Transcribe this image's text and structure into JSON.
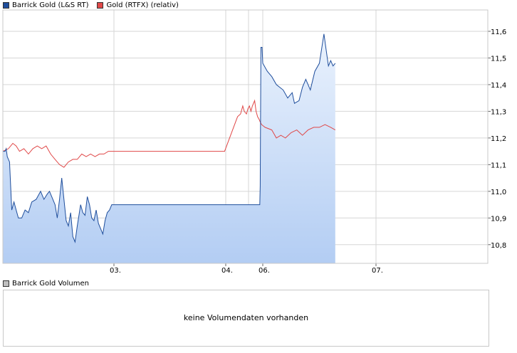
{
  "legend": {
    "series1": "Barrick Gold (L&S RT)",
    "series2": "Gold (RTFX) (relativ)",
    "volume": "Barrick Gold Volumen"
  },
  "volume_message": "keine Volumendaten vorhanden",
  "colors": {
    "barrick_line": "#1f4e9c",
    "barrick_fill_top": "#eaf2fd",
    "barrick_fill_bottom": "#b3cdf3",
    "gold_line": "#e04848",
    "grid": "#d6d6d6",
    "frame": "#c8c8c8",
    "volume_swatch": "#bfbfbf"
  },
  "chart_data": {
    "type": "line",
    "x_ticks": [
      "03.",
      "04.",
      "06.",
      "07."
    ],
    "y_ticks": [
      "10,8",
      "10,9",
      "11,0",
      "11,1",
      "11,2",
      "11,3",
      "11,4",
      "11,5",
      "11,6"
    ],
    "ylim": [
      10.73,
      11.68
    ],
    "grid": true,
    "legend_position": "top-left",
    "series": [
      {
        "name": "Barrick Gold (L&S RT)",
        "area_fill": true,
        "points": [
          [
            0.0,
            11.15
          ],
          [
            0.02,
            11.15
          ],
          [
            0.03,
            11.16
          ],
          [
            0.04,
            11.13
          ],
          [
            0.06,
            11.11
          ],
          [
            0.08,
            10.93
          ],
          [
            0.1,
            10.96
          ],
          [
            0.12,
            10.93
          ],
          [
            0.14,
            10.9
          ],
          [
            0.17,
            10.9
          ],
          [
            0.2,
            10.93
          ],
          [
            0.23,
            10.92
          ],
          [
            0.26,
            10.96
          ],
          [
            0.3,
            10.97
          ],
          [
            0.34,
            11.0
          ],
          [
            0.37,
            10.97
          ],
          [
            0.4,
            10.99
          ],
          [
            0.42,
            11.0
          ],
          [
            0.45,
            10.97
          ],
          [
            0.47,
            10.95
          ],
          [
            0.49,
            10.9
          ],
          [
            0.51,
            10.97
          ],
          [
            0.53,
            11.05
          ],
          [
            0.55,
            10.97
          ],
          [
            0.57,
            10.89
          ],
          [
            0.59,
            10.87
          ],
          [
            0.61,
            10.92
          ],
          [
            0.63,
            10.83
          ],
          [
            0.65,
            10.81
          ],
          [
            0.67,
            10.87
          ],
          [
            0.7,
            10.95
          ],
          [
            0.72,
            10.92
          ],
          [
            0.74,
            10.91
          ],
          [
            0.76,
            10.98
          ],
          [
            0.78,
            10.95
          ],
          [
            0.8,
            10.9
          ],
          [
            0.82,
            10.89
          ],
          [
            0.84,
            10.93
          ],
          [
            0.86,
            10.88
          ],
          [
            0.88,
            10.86
          ],
          [
            0.9,
            10.84
          ],
          [
            0.92,
            10.89
          ],
          [
            0.94,
            10.92
          ],
          [
            0.96,
            10.93
          ],
          [
            0.98,
            10.95
          ],
          [
            1.0,
            10.95
          ],
          [
            1.6,
            10.95
          ],
          [
            2.3,
            10.95
          ],
          [
            2.92,
            10.95
          ],
          [
            2.93,
            11.02
          ],
          [
            2.95,
            11.54
          ],
          [
            2.98,
            11.54
          ],
          [
            3.0,
            11.48
          ],
          [
            3.04,
            11.45
          ],
          [
            3.08,
            11.43
          ],
          [
            3.12,
            11.4
          ],
          [
            3.18,
            11.38
          ],
          [
            3.22,
            11.35
          ],
          [
            3.26,
            11.37
          ],
          [
            3.28,
            11.33
          ],
          [
            3.32,
            11.34
          ],
          [
            3.35,
            11.39
          ],
          [
            3.38,
            11.42
          ],
          [
            3.42,
            11.38
          ],
          [
            3.46,
            11.45
          ],
          [
            3.5,
            11.48
          ],
          [
            3.54,
            11.59
          ],
          [
            3.56,
            11.53
          ],
          [
            3.58,
            11.47
          ],
          [
            3.6,
            11.49
          ],
          [
            3.62,
            11.47
          ],
          [
            3.64,
            11.48
          ]
        ]
      },
      {
        "name": "Gold (RTFX) (relativ)",
        "area_fill": false,
        "points": [
          [
            0.0,
            11.15
          ],
          [
            0.05,
            11.16
          ],
          [
            0.09,
            11.18
          ],
          [
            0.12,
            11.17
          ],
          [
            0.15,
            11.15
          ],
          [
            0.19,
            11.16
          ],
          [
            0.23,
            11.14
          ],
          [
            0.27,
            11.16
          ],
          [
            0.31,
            11.17
          ],
          [
            0.35,
            11.16
          ],
          [
            0.39,
            11.17
          ],
          [
            0.43,
            11.14
          ],
          [
            0.47,
            11.12
          ],
          [
            0.51,
            11.1
          ],
          [
            0.55,
            11.09
          ],
          [
            0.59,
            11.11
          ],
          [
            0.63,
            11.12
          ],
          [
            0.67,
            11.12
          ],
          [
            0.71,
            11.14
          ],
          [
            0.75,
            11.13
          ],
          [
            0.79,
            11.14
          ],
          [
            0.83,
            11.13
          ],
          [
            0.87,
            11.14
          ],
          [
            0.91,
            11.14
          ],
          [
            0.95,
            11.15
          ],
          [
            1.0,
            11.15
          ],
          [
            1.5,
            11.15
          ],
          [
            1.99,
            11.15
          ],
          [
            2.32,
            11.28
          ],
          [
            2.4,
            11.29
          ],
          [
            2.46,
            11.32
          ],
          [
            2.5,
            11.3
          ],
          [
            2.56,
            11.29
          ],
          [
            2.6,
            11.31
          ],
          [
            2.64,
            11.32
          ],
          [
            2.68,
            11.3
          ],
          [
            2.72,
            11.32
          ],
          [
            2.78,
            11.34
          ],
          [
            2.82,
            11.3
          ],
          [
            2.86,
            11.28
          ],
          [
            2.9,
            11.27
          ],
          [
            2.93,
            11.26
          ],
          [
            2.97,
            11.25
          ],
          [
            3.02,
            11.24
          ],
          [
            3.08,
            11.23
          ],
          [
            3.12,
            11.2
          ],
          [
            3.16,
            11.21
          ],
          [
            3.2,
            11.2
          ],
          [
            3.25,
            11.22
          ],
          [
            3.3,
            11.23
          ],
          [
            3.35,
            11.21
          ],
          [
            3.4,
            11.23
          ],
          [
            3.45,
            11.24
          ],
          [
            3.5,
            11.24
          ],
          [
            3.55,
            11.25
          ],
          [
            3.6,
            11.24
          ],
          [
            3.64,
            11.23
          ]
        ]
      }
    ]
  }
}
